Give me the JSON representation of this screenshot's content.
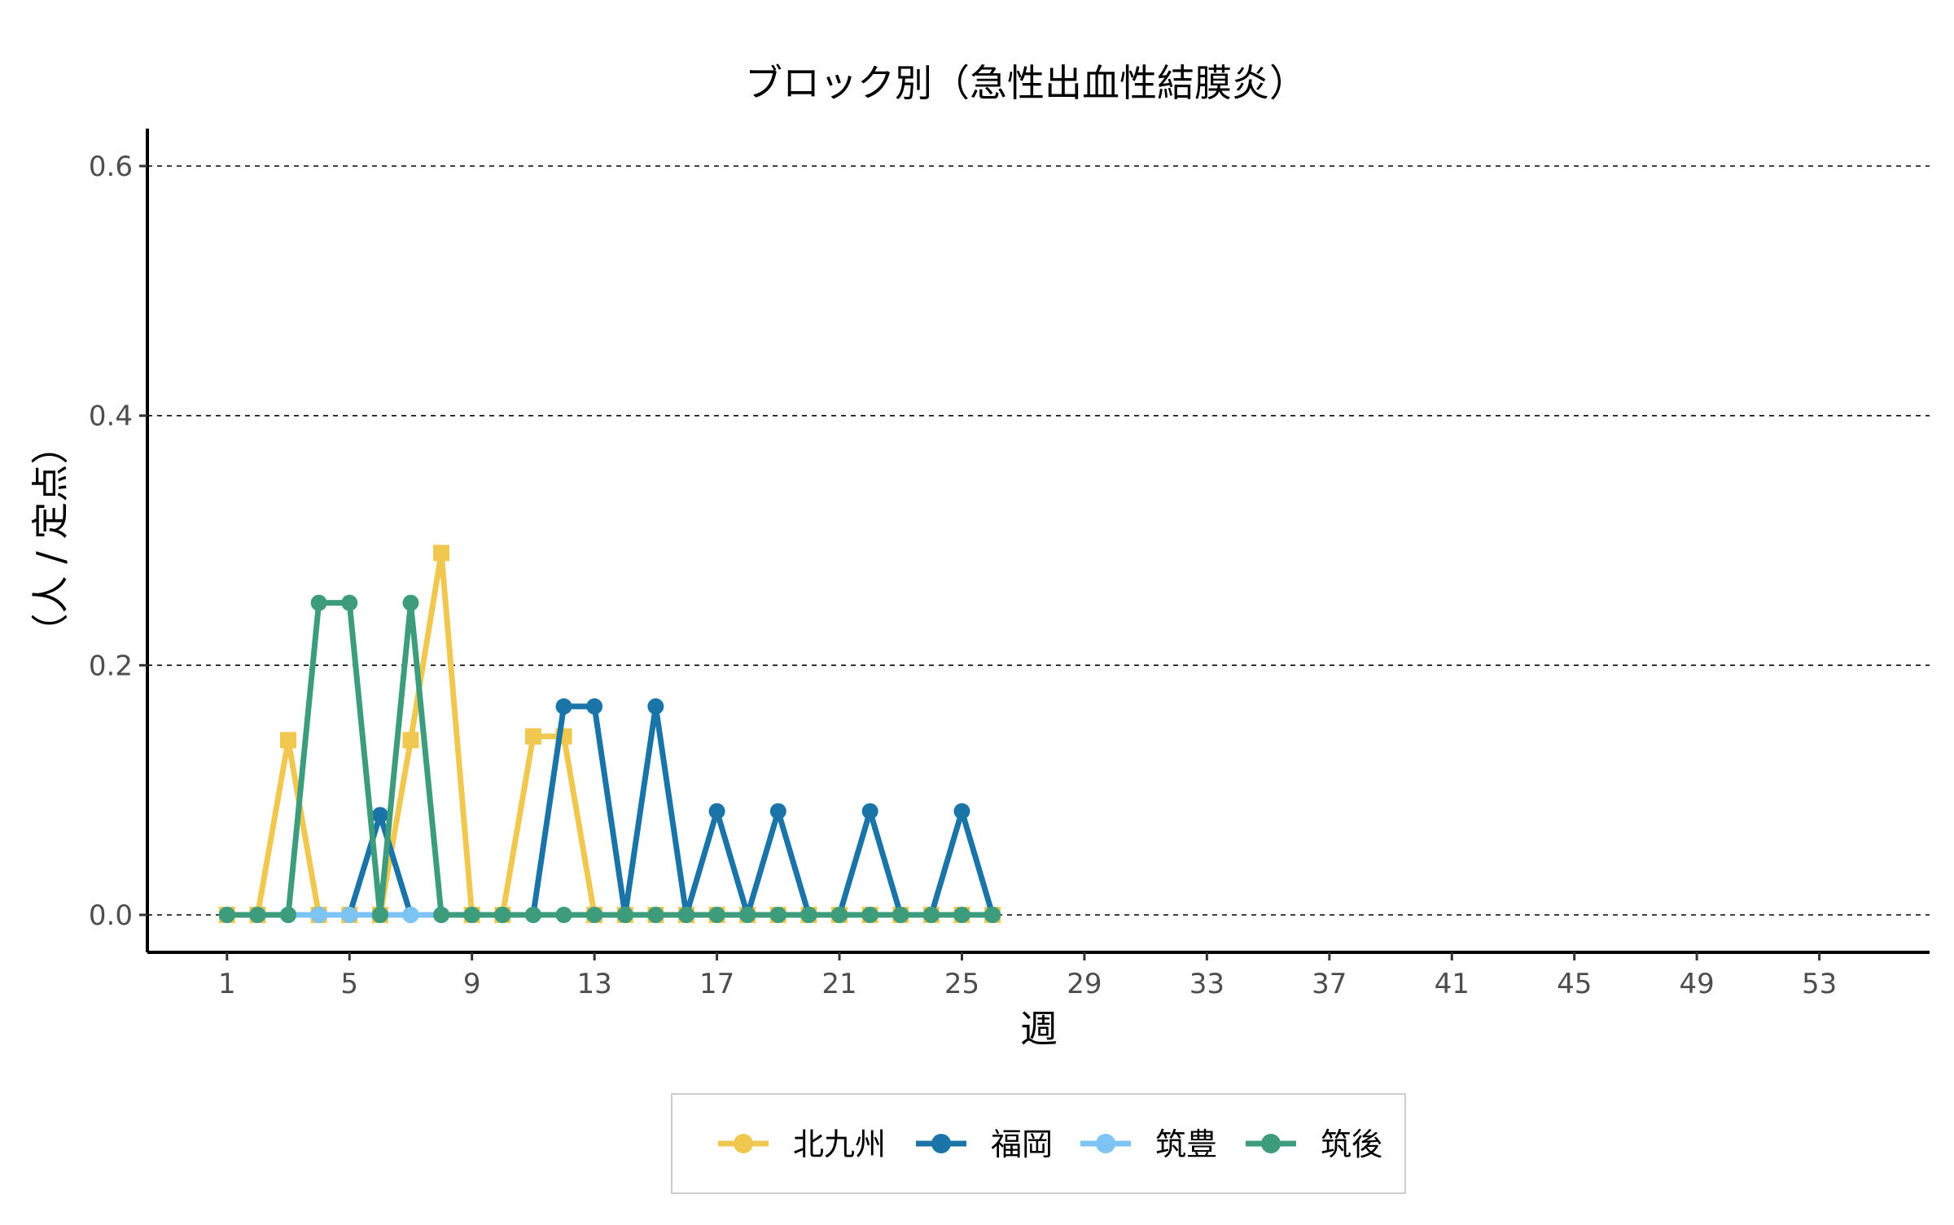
{
  "chart_data": {
    "type": "line",
    "title": "ブロック別（急性出血性結膜炎）",
    "xlabel": "週",
    "ylabel": "（人 / 定点）",
    "xlim": [
      -1.6,
      56.6
    ],
    "ylim": [
      -0.03,
      0.63
    ],
    "x_ticks": [
      1,
      5,
      9,
      13,
      17,
      21,
      25,
      29,
      33,
      37,
      41,
      45,
      49,
      53
    ],
    "x_tick_labels": [
      "1",
      "5",
      "9",
      "13",
      "17",
      "21",
      "25",
      "29",
      "33",
      "37",
      "41",
      "45",
      "49",
      "53"
    ],
    "y_ticks": [
      0,
      0.2,
      0.4,
      0.6
    ],
    "y_tick_labels": [
      "0.0",
      "0.2",
      "0.4",
      "0.6"
    ],
    "grid": "horizontal dashed",
    "legend_position": "bottom",
    "x": [
      1,
      2,
      3,
      4,
      5,
      6,
      7,
      8,
      9,
      10,
      11,
      12,
      13,
      14,
      15,
      16,
      17,
      18,
      19,
      20,
      21,
      22,
      23,
      24,
      25,
      26
    ],
    "series": [
      {
        "name": "北九州",
        "color": "#F0C850",
        "marker": "square",
        "values": [
          0,
          0,
          0.14,
          0,
          0,
          0,
          0.14,
          0.29,
          0,
          0,
          0.143,
          0.143,
          0,
          0,
          0,
          0,
          0,
          0,
          0,
          0,
          0,
          0,
          0,
          0,
          0,
          0
        ]
      },
      {
        "name": "福岡",
        "color": "#1A74A8",
        "marker": "circle",
        "values": [
          0,
          0,
          0,
          0,
          0,
          0.08,
          0,
          0,
          0,
          0,
          0,
          0.167,
          0.167,
          0,
          0.167,
          0,
          0.083,
          0,
          0.083,
          0,
          0,
          0.083,
          0,
          0,
          0.083,
          0
        ]
      },
      {
        "name": "筑豊",
        "color": "#7CC4F4",
        "marker": "circle",
        "values": [
          0,
          0,
          0,
          0,
          0,
          0,
          0,
          0,
          0,
          0,
          0,
          0,
          0,
          0,
          0,
          0,
          0,
          0,
          0,
          0,
          0,
          0,
          0,
          0,
          0,
          0
        ]
      },
      {
        "name": "筑後",
        "color": "#3C9C7C",
        "marker": "circle",
        "values": [
          0,
          0,
          0,
          0.25,
          0.25,
          0,
          0.25,
          0,
          0,
          0,
          0,
          0,
          0,
          0,
          0,
          0,
          0,
          0,
          0,
          0,
          0,
          0,
          0,
          0,
          0,
          0
        ]
      }
    ]
  }
}
